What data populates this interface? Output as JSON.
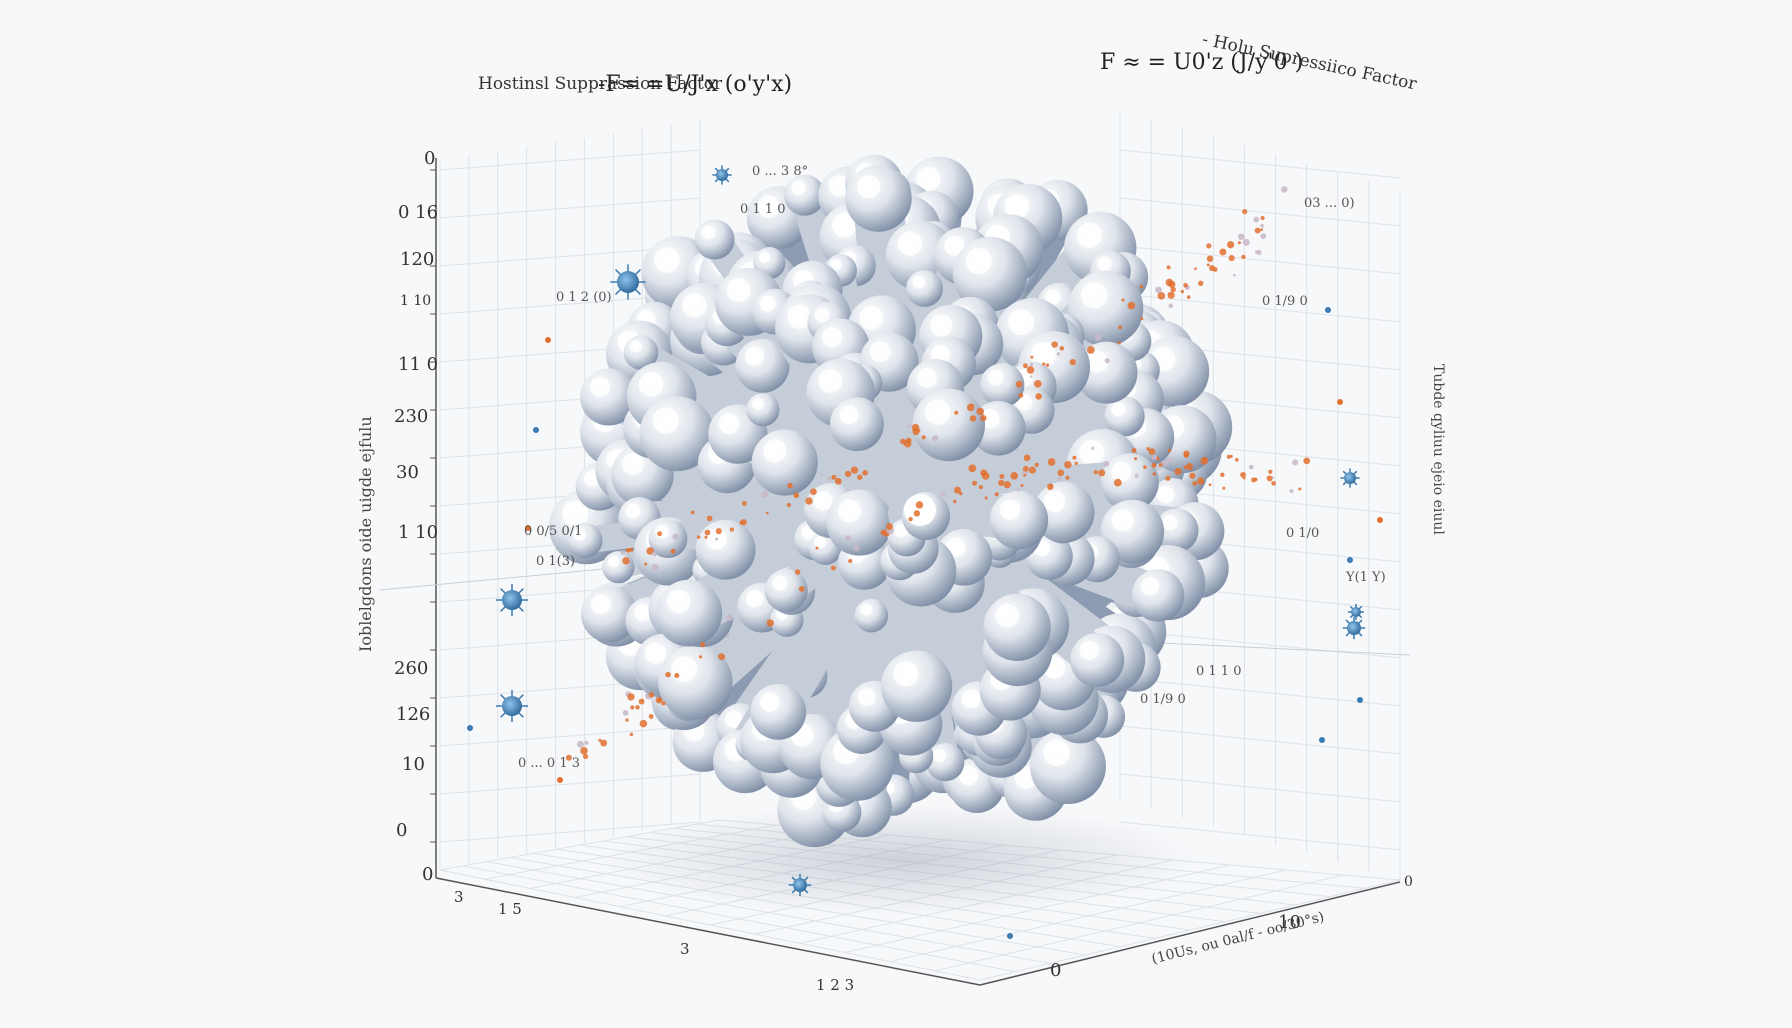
{
  "chart_data": {
    "type": "scatter",
    "dimensions": "3d",
    "titles": [
      "Hostinsl Supprassion Factor",
      "- Holu Supressiico Factor"
    ],
    "formulas": [
      "-F= =U/J'x (o'y'x)",
      "F ≈ = U0'z (J/y'0 )"
    ],
    "z_ticks": [
      "0",
      "0 16",
      "120",
      "1 10",
      "11 0",
      "230",
      "30",
      "1 10",
      "260",
      "126",
      "10",
      "0",
      "0"
    ],
    "x_ticks": [
      "3",
      "1 5",
      "3",
      "1 2 3"
    ],
    "y_ticks": [
      "0",
      "10",
      "0"
    ],
    "left_axis_label": "Ioblelgdons oide uigde ejfulu",
    "right_axis_label": "Tubde qyliuu ejeio eiuul",
    "bottom_axis_label": "(10Us, ou 0al/f - oo/30°s)",
    "annotations": [
      "0 ... 3 8°",
      "0 1 1 0",
      "03 ... 0)",
      "0 1 2 (0)",
      "0 1/9 0",
      "0 0/5 0/1",
      "0 1/0",
      "0 1(3)",
      "0 1 1 0",
      "0 ... 0 1 3",
      "Y(1 Y)",
      "0 1/9 0"
    ],
    "series": [
      {
        "name": "",
        "color": "#e2702f",
        "points": 320
      },
      {
        "name": "",
        "color": "#a7b4c6",
        "points": 380
      }
    ],
    "grid": true,
    "colors": {
      "cluster": "#7d8da6",
      "cluster_light": "#f4f6f9",
      "trail": "#e2702f",
      "molecule": "#3a7bb4"
    }
  }
}
